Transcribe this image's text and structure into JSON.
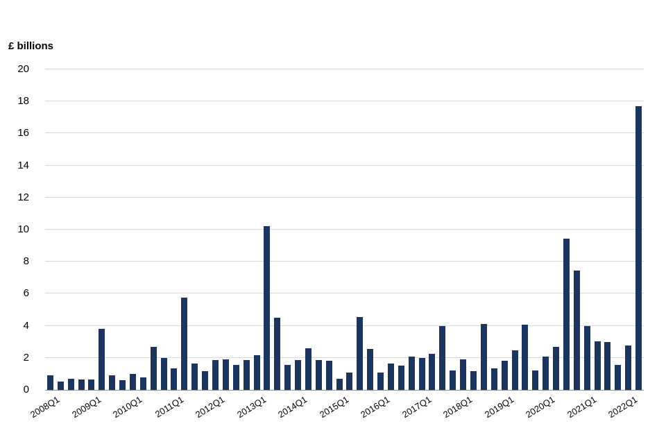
{
  "chart_data": {
    "type": "bar",
    "title": "",
    "ylabel": "£ billions",
    "xlabel": "",
    "ylim": [
      0,
      20
    ],
    "ytick_step": 2,
    "grid": "horizontal",
    "legend": "none",
    "bar_color": "#1c355e",
    "gridline_color": "#d9d9d9",
    "axis_line_color": "#8c8c8c",
    "categories": [
      "2008Q1",
      "2008Q2",
      "2008Q3",
      "2008Q4",
      "2009Q1",
      "2009Q2",
      "2009Q3",
      "2009Q4",
      "2010Q1",
      "2010Q2",
      "2010Q3",
      "2010Q4",
      "2011Q1",
      "2011Q2",
      "2011Q3",
      "2011Q4",
      "2012Q1",
      "2012Q2",
      "2012Q3",
      "2012Q4",
      "2013Q1",
      "2013Q2",
      "2013Q3",
      "2013Q4",
      "2014Q1",
      "2014Q2",
      "2014Q3",
      "2014Q4",
      "2015Q1",
      "2015Q2",
      "2015Q3",
      "2015Q4",
      "2016Q1",
      "2016Q2",
      "2016Q3",
      "2016Q4",
      "2017Q1",
      "2017Q2",
      "2017Q3",
      "2017Q4",
      "2018Q1",
      "2018Q2",
      "2018Q3",
      "2018Q4",
      "2019Q1",
      "2019Q2",
      "2019Q3",
      "2019Q4",
      "2020Q1",
      "2020Q2",
      "2020Q3",
      "2020Q4",
      "2021Q1",
      "2021Q2",
      "2021Q3",
      "2021Q4",
      "2022Q1",
      "2022Q2"
    ],
    "values": [
      0.9,
      0.5,
      0.7,
      0.65,
      0.65,
      3.8,
      0.9,
      0.6,
      1.0,
      0.8,
      2.7,
      2.0,
      1.35,
      5.75,
      1.65,
      1.15,
      1.85,
      1.9,
      1.55,
      1.85,
      2.15,
      10.2,
      4.5,
      1.55,
      1.85,
      2.6,
      1.85,
      1.8,
      0.7,
      1.1,
      4.55,
      2.55,
      1.1,
      1.65,
      1.5,
      2.1,
      2.0,
      2.25,
      4.0,
      1.2,
      1.9,
      1.15,
      4.1,
      1.35,
      1.8,
      2.45,
      4.05,
      1.2,
      2.1,
      2.7,
      9.45,
      7.45,
      4.0,
      3.05,
      3.0,
      1.55,
      2.75,
      17.7
    ],
    "x_tick_labels": [
      "2008Q1",
      "2009Q1",
      "2010Q1",
      "2011Q1",
      "2012Q1",
      "2013Q1",
      "2014Q1",
      "2015Q1",
      "2016Q1",
      "2017Q1",
      "2018Q1",
      "2019Q1",
      "2020Q1",
      "2021Q1",
      "2022Q1"
    ],
    "y_tick_labels": [
      "0",
      "2",
      "4",
      "6",
      "8",
      "10",
      "12",
      "14",
      "16",
      "18",
      "20"
    ]
  }
}
